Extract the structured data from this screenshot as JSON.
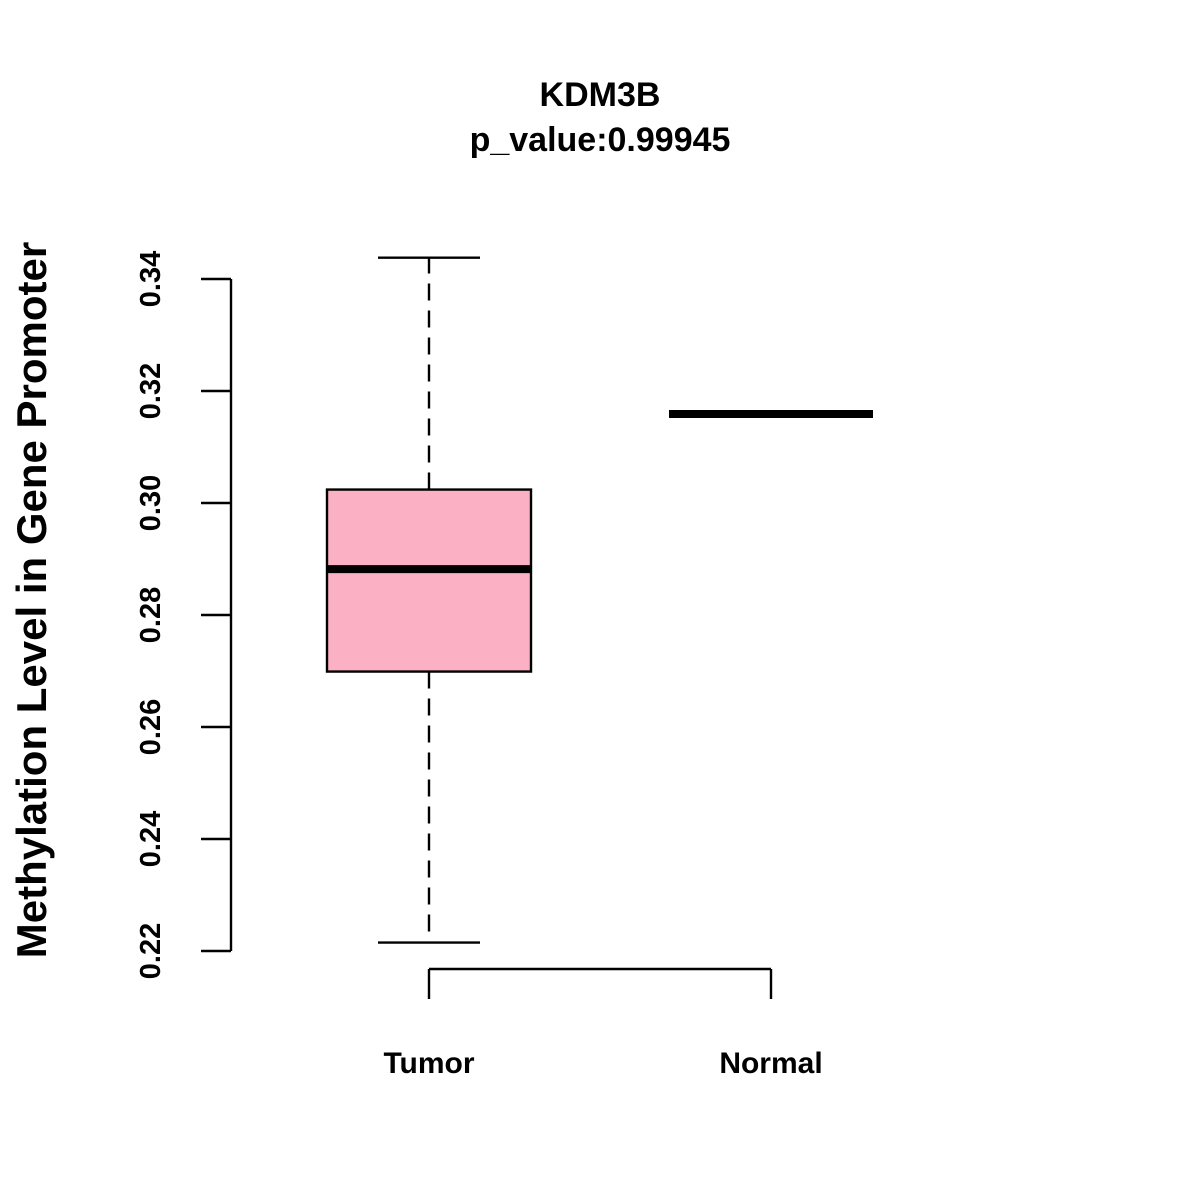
{
  "chart_data": {
    "type": "box",
    "title": "KDM3B",
    "subtitle": "p_value:0.99945",
    "xlabel": "",
    "ylabel": "Methylation Level in Gene Promoter",
    "ylim": [
      0.215,
      0.345
    ],
    "yticks": [
      "0.22",
      "0.24",
      "0.26",
      "0.28",
      "0.30",
      "0.32",
      "0.34"
    ],
    "grid": false,
    "categories": [
      "Tumor",
      "Normal"
    ],
    "boxes": [
      {
        "category": "Tumor",
        "min": 0.2215,
        "q1": 0.2699,
        "median": 0.2882,
        "q3": 0.3024,
        "max": 0.3438,
        "fill": "#FBB1C3"
      },
      {
        "category": "Normal",
        "min": 0.3159,
        "q1": 0.3159,
        "median": 0.3159,
        "q3": 0.3159,
        "max": 0.3159,
        "fill": "#FBB1C3"
      }
    ]
  }
}
